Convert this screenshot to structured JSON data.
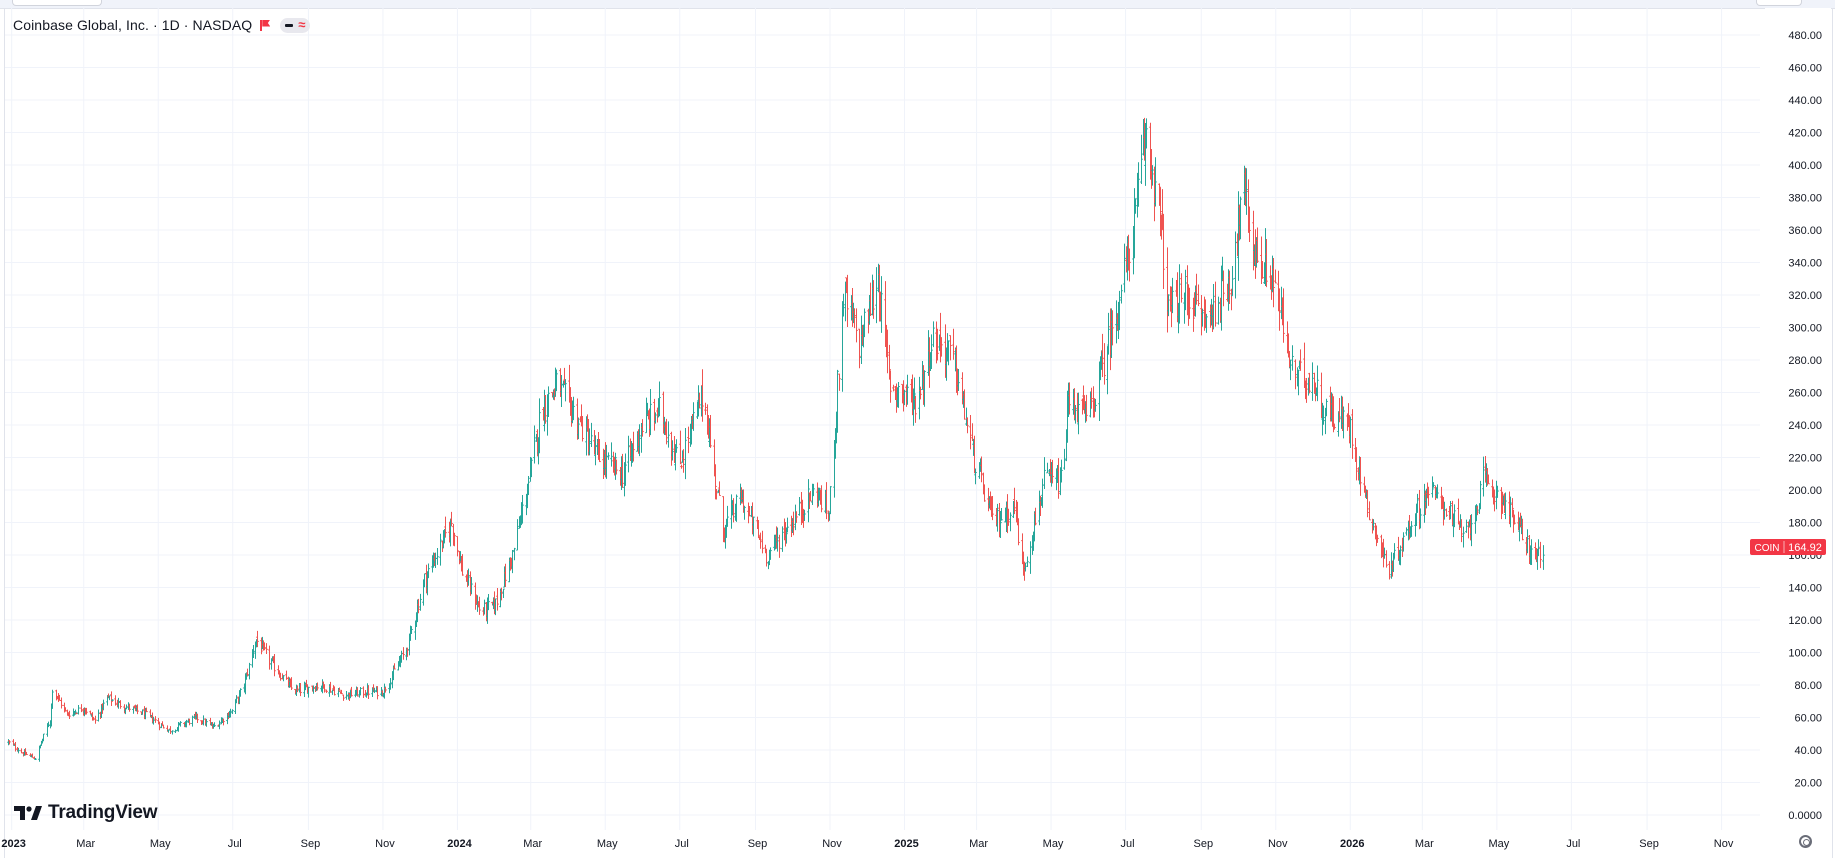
{
  "legend": {
    "symbol_line": "Coinbase Global, Inc. · 1D · NASDAQ",
    "flag_icon": "red-flag-icon",
    "pill_icons": [
      "dash-icon",
      "approx-icon"
    ]
  },
  "brand": {
    "name": "TradingView",
    "icon": "tradingview-logo-icon"
  },
  "settings_icon": "gear-icon",
  "colors": {
    "up": "#26a69a",
    "down": "#ef5350",
    "grid": "#f0f3fa",
    "axis_text": "#131722",
    "price_label_bg": "#f23645",
    "background": "#ffffff"
  },
  "chart_data": {
    "type": "candlestick",
    "symbol": "COIN",
    "last_price": "164.92",
    "ylim": [
      0,
      480
    ],
    "y_ticks": [
      "0.0000",
      "20.00",
      "40.00",
      "60.00",
      "80.00",
      "100.00",
      "120.00",
      "140.00",
      "160.00",
      "180.00",
      "200.00",
      "220.00",
      "240.00",
      "260.00",
      "280.00",
      "300.00",
      "320.00",
      "340.00",
      "360.00",
      "380.00",
      "400.00",
      "420.00",
      "440.00",
      "460.00",
      "480.00"
    ],
    "x_ticks": [
      {
        "label": "2023",
        "bold": true
      },
      {
        "label": "Mar",
        "bold": false
      },
      {
        "label": "May",
        "bold": false
      },
      {
        "label": "Jul",
        "bold": false
      },
      {
        "label": "Sep",
        "bold": false
      },
      {
        "label": "Nov",
        "bold": false
      },
      {
        "label": "2024",
        "bold": true
      },
      {
        "label": "Mar",
        "bold": false
      },
      {
        "label": "May",
        "bold": false
      },
      {
        "label": "Jul",
        "bold": false
      },
      {
        "label": "Sep",
        "bold": false
      },
      {
        "label": "Nov",
        "bold": false
      },
      {
        "label": "2025",
        "bold": true
      },
      {
        "label": "Mar",
        "bold": false
      },
      {
        "label": "May",
        "bold": false
      },
      {
        "label": "Jul",
        "bold": false
      },
      {
        "label": "Sep",
        "bold": false
      },
      {
        "label": "Nov",
        "bold": false
      },
      {
        "label": "2026",
        "bold": true
      },
      {
        "label": "Mar",
        "bold": false
      },
      {
        "label": "May",
        "bold": false
      },
      {
        "label": "Jul",
        "bold": false
      },
      {
        "label": "Sep",
        "bold": false
      },
      {
        "label": "Nov",
        "bold": false
      }
    ],
    "grid": true,
    "x_range": [
      "2022-12-29",
      "2026-11-30"
    ],
    "price_path": [
      [
        "2022-12-29",
        45
      ],
      [
        "2023-01-10",
        38
      ],
      [
        "2023-01-20",
        35
      ],
      [
        "2023-02-01",
        58
      ],
      [
        "2023-02-03",
        78
      ],
      [
        "2023-02-15",
        62
      ],
      [
        "2023-03-01",
        66
      ],
      [
        "2023-03-10",
        58
      ],
      [
        "2023-03-20",
        72
      ],
      [
        "2023-03-31",
        68
      ],
      [
        "2023-04-20",
        62
      ],
      [
        "2023-05-10",
        52
      ],
      [
        "2023-06-01",
        60
      ],
      [
        "2023-06-15",
        54
      ],
      [
        "2023-06-30",
        64
      ],
      [
        "2023-07-10",
        80
      ],
      [
        "2023-07-20",
        108
      ],
      [
        "2023-08-01",
        94
      ],
      [
        "2023-08-20",
        76
      ],
      [
        "2023-09-10",
        80
      ],
      [
        "2023-10-01",
        74
      ],
      [
        "2023-10-20",
        76
      ],
      [
        "2023-11-01",
        76
      ],
      [
        "2023-11-20",
        102
      ],
      [
        "2023-12-05",
        145
      ],
      [
        "2023-12-27",
        180
      ],
      [
        "2024-01-05",
        150
      ],
      [
        "2024-01-20",
        125
      ],
      [
        "2024-02-01",
        130
      ],
      [
        "2024-02-15",
        160
      ],
      [
        "2024-02-28",
        205
      ],
      [
        "2024-03-10",
        250
      ],
      [
        "2024-03-22",
        265
      ],
      [
        "2024-04-05",
        248
      ],
      [
        "2024-04-25",
        220
      ],
      [
        "2024-05-15",
        210
      ],
      [
        "2024-05-31",
        240
      ],
      [
        "2024-06-15",
        250
      ],
      [
        "2024-06-30",
        215
      ],
      [
        "2024-07-20",
        260
      ],
      [
        "2024-08-05",
        175
      ],
      [
        "2024-08-20",
        195
      ],
      [
        "2024-09-10",
        160
      ],
      [
        "2024-09-25",
        175
      ],
      [
        "2024-10-20",
        200
      ],
      [
        "2024-10-31",
        185
      ],
      [
        "2024-11-12",
        320
      ],
      [
        "2024-11-25",
        290
      ],
      [
        "2024-12-10",
        330
      ],
      [
        "2024-12-20",
        265
      ],
      [
        "2025-01-10",
        255
      ],
      [
        "2025-01-25",
        295
      ],
      [
        "2025-02-10",
        280
      ],
      [
        "2025-02-28",
        215
      ],
      [
        "2025-03-15",
        180
      ],
      [
        "2025-04-01",
        190
      ],
      [
        "2025-04-08",
        150
      ],
      [
        "2025-04-25",
        205
      ],
      [
        "2025-05-10",
        205
      ],
      [
        "2025-05-15",
        255
      ],
      [
        "2025-06-01",
        245
      ],
      [
        "2025-06-20",
        300
      ],
      [
        "2025-07-05",
        350
      ],
      [
        "2025-07-18",
        420
      ],
      [
        "2025-07-28",
        375
      ],
      [
        "2025-08-05",
        310
      ],
      [
        "2025-08-20",
        320
      ],
      [
        "2025-09-05",
        305
      ],
      [
        "2025-09-25",
        330
      ],
      [
        "2025-10-05",
        385
      ],
      [
        "2025-10-15",
        345
      ],
      [
        "2025-10-30",
        330
      ],
      [
        "2025-11-15",
        270
      ],
      [
        "2025-11-30",
        270
      ],
      [
        "2025-12-10",
        250
      ],
      [
        "2025-12-31",
        240
      ],
      [
        "2026-01-15",
        190
      ],
      [
        "2026-02-01",
        150
      ],
      [
        "2026-02-20",
        180
      ],
      [
        "2026-03-05",
        200
      ],
      [
        "2026-03-20",
        190
      ],
      [
        "2026-04-05",
        170
      ],
      [
        "2026-04-20",
        205
      ],
      [
        "2026-05-05",
        195
      ],
      [
        "2026-05-20",
        175
      ],
      [
        "2026-06-01",
        158
      ],
      [
        "2026-06-08",
        165
      ]
    ]
  }
}
